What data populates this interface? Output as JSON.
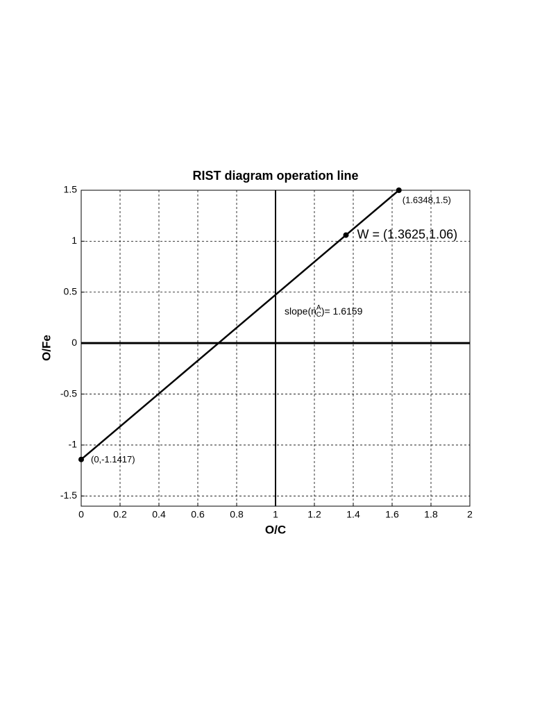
{
  "chart_data": {
    "type": "line",
    "title": "RIST diagram operation line",
    "xlabel": "O/C",
    "ylabel": "O/Fe",
    "xlim": [
      0,
      2
    ],
    "xticks": [
      0,
      0.2,
      0.4,
      0.6,
      0.8,
      1,
      1.2,
      1.4,
      1.6,
      1.8,
      2
    ],
    "ylim": [
      -1.6,
      1.5
    ],
    "yticks": [
      -1.5,
      -1,
      -0.5,
      0,
      0.5,
      1,
      1.5
    ],
    "grid": true,
    "vlines": [
      1
    ],
    "hlines": [
      0
    ],
    "series": [
      {
        "color": "#000000",
        "x": [
          0,
          1.3625,
          1.6348
        ],
        "values": [
          -1.1417,
          1.06,
          1.5
        ]
      }
    ],
    "annotations": [
      "(0,-1.1417)",
      "W = (1.3625,1.06)",
      "(1.6348,1.5)"
    ],
    "slope_label": {
      "prefix": "slope(n",
      "superscript": "A",
      "subscript": "C",
      "suffix": ")= 1.6159"
    }
  }
}
